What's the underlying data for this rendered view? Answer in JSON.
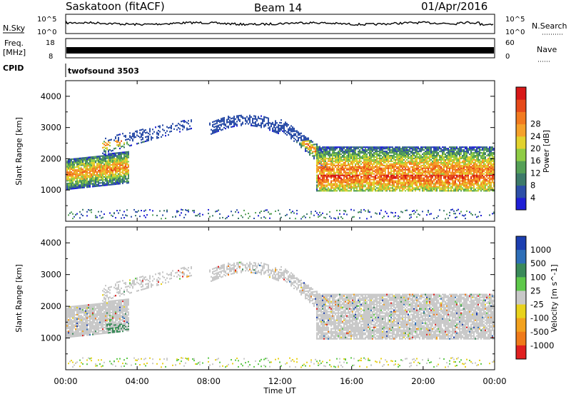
{
  "header": {
    "station": "Saskatoon (fitACF)",
    "beam": "Beam 14",
    "date": "01/Apr/2016"
  },
  "left_labels": {
    "nsky": "N.Sky",
    "freq_line1": "Freq.",
    "freq_line2": "[MHz]",
    "cpid": "CPID"
  },
  "right_labels": {
    "nsearch": "N.Search",
    "nave": "Nave"
  },
  "noise_axis": {
    "left_top": "10^5",
    "left_bottom": "10^0",
    "right_top": "10^5",
    "right_bottom": "10^0"
  },
  "freq_axis": {
    "left_top": "18",
    "left_bottom": "8",
    "right_top": "60",
    "right_bottom": "0"
  },
  "cpid_name": "twofsound 3503",
  "chart_data": [
    {
      "type": "heatmap",
      "panel": "power",
      "ylabel": "Slant Range [km]",
      "ylim": [
        0,
        4500
      ],
      "yticks": [
        "1000",
        "2000",
        "3000",
        "4000"
      ],
      "xlabel": "Time UT",
      "xticks": [
        "00:00",
        "04:00",
        "08:00",
        "12:00",
        "16:00",
        "20:00",
        "00:00"
      ],
      "colorbar": {
        "label": "Power [dB]",
        "ticks": [
          "4",
          "8",
          "12",
          "16",
          "20",
          "24",
          "28"
        ],
        "colors": [
          "#1f1fd6",
          "#2d4fa8",
          "#3d7a6a",
          "#55a056",
          "#8fcc45",
          "#e2d22d",
          "#f5a12a",
          "#f27a1f",
          "#e64a1a",
          "#d81818"
        ]
      }
    },
    {
      "type": "heatmap",
      "panel": "velocity",
      "ylabel": "Slant Range [km]",
      "ylim": [
        0,
        4500
      ],
      "yticks": [
        "1000",
        "2000",
        "3000",
        "4000"
      ],
      "colorbar": {
        "label": "Velocity [m s^-1]",
        "ticks": [
          "1000",
          "500",
          "100",
          "25",
          "-25",
          "-100",
          "-500",
          "-1000"
        ],
        "colors": [
          "#1c3fb0",
          "#2e6fb8",
          "#3a8a5a",
          "#5ec84a",
          "#c8c8c8",
          "#e8d21c",
          "#f2a11e",
          "#ef7a1a",
          "#e02020"
        ]
      }
    }
  ]
}
